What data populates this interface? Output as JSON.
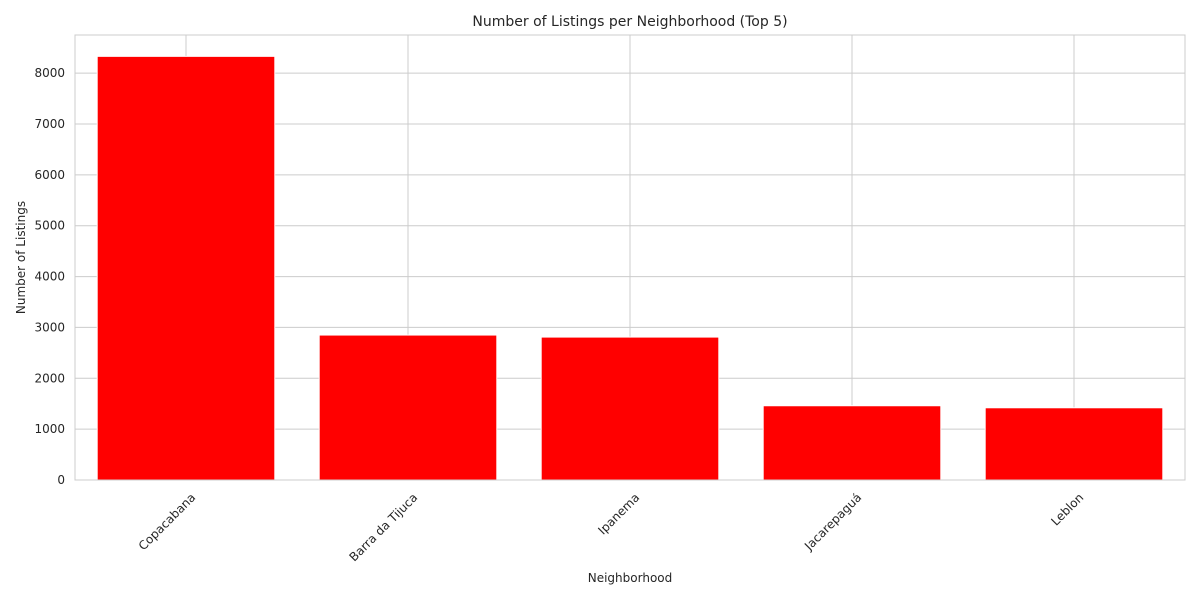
{
  "chart_data": {
    "type": "bar",
    "title": "Number of Listings per Neighborhood (Top 5)",
    "xlabel": "Neighborhood",
    "ylabel": "Number of Listings",
    "categories": [
      "Copacabana",
      "Barra da Tijuca",
      "Ipanema",
      "Jacarepaguá",
      "Leblon"
    ],
    "values": [
      8330,
      2850,
      2810,
      1460,
      1420
    ],
    "ylim": [
      0,
      8750
    ],
    "yticks": [
      0,
      1000,
      2000,
      3000,
      4000,
      5000,
      6000,
      7000,
      8000
    ],
    "grid": true,
    "legend": "none",
    "bar_color": "#ff0000",
    "grid_color": "#cccccc",
    "tick_label_rotation": 45
  }
}
